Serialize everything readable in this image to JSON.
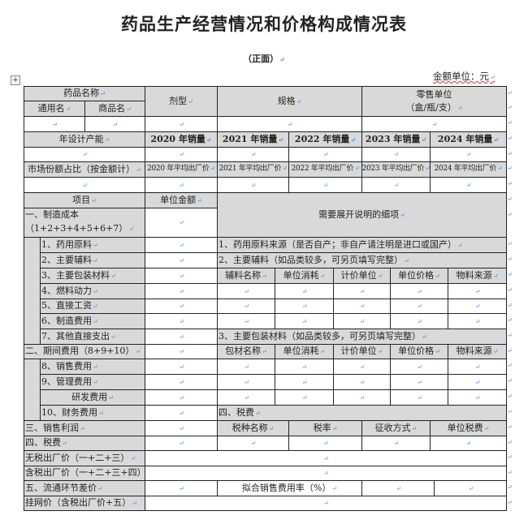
{
  "title": "药品生产经营情况和价格构成情况表",
  "subtitle": "（正面）",
  "unit_label": "金额单位：元",
  "header": {
    "drug_name": "药品名称",
    "generic_name": "通用名",
    "trade_name": "商品名",
    "dosage_form": "剂型",
    "specification": "规格",
    "retail_unit_line1": "零售单位",
    "retail_unit_line2": "（盒/瓶/支）",
    "design_capacity": "年设计产能",
    "sales": [
      "2020 年销量",
      "2021 年销量",
      "2022 年销量",
      "2023 年销量",
      "2024 年销量"
    ],
    "market_share": "市场份额占比（按金额计）",
    "avg_price": [
      "2020 年平均出厂价",
      "2021 年平均出厂价",
      "2022 年平均出厂价",
      "2023 年平均出厂价",
      "2024 年平均出厂价"
    ]
  },
  "cost": {
    "item": "项目",
    "unit_amount": "单位金额",
    "details_title": "需要展开说明的细项",
    "manufacturing_line1": "一、制造成本",
    "manufacturing_line2": "（1+2+3+4+5+6+7）",
    "items": [
      "1、药用原料",
      "2、主要辅料",
      "3、主要包装材料",
      "4、燃料动力",
      "5、直接工资",
      "6、制造费用",
      "7、其他直接支出"
    ],
    "note1": "1、药用原料来源（是否自产；非自产请注明是进口或国产）",
    "note2": "2、主要辅料（如品类较多，可另页填写完整）",
    "note3": "3、主要包装材料（如品类较多，可另页填写完整）",
    "excipient_cols": [
      "辅料名称",
      "单位消耗",
      "计价单位",
      "单位价格",
      "物料来源"
    ],
    "packaging_cols": [
      "包材名称",
      "单位消耗",
      "计价单位",
      "单位价格",
      "物料来源"
    ],
    "period_expense": "二、期间费用（8+9+10）",
    "period_items": [
      "8、销售费用",
      "9、管理费用",
      "研发费用",
      "10、财务费用"
    ],
    "tax_section": "四、税费",
    "tax_cols": [
      "税种名称",
      "税率",
      "征收方式",
      "单位税费"
    ],
    "sales_profit": "三、销售利润",
    "tax": "四、税费",
    "ex_tax_price": "无税出厂价（一+二+三）",
    "tax_incl_price": "含税出厂价（一+二+三+四）",
    "distribution_margin": "五、流通环节差价",
    "sales_expense_rate": "拟合销售费用率（%）",
    "listing_price": "挂网价（含税出厂价+五）"
  }
}
